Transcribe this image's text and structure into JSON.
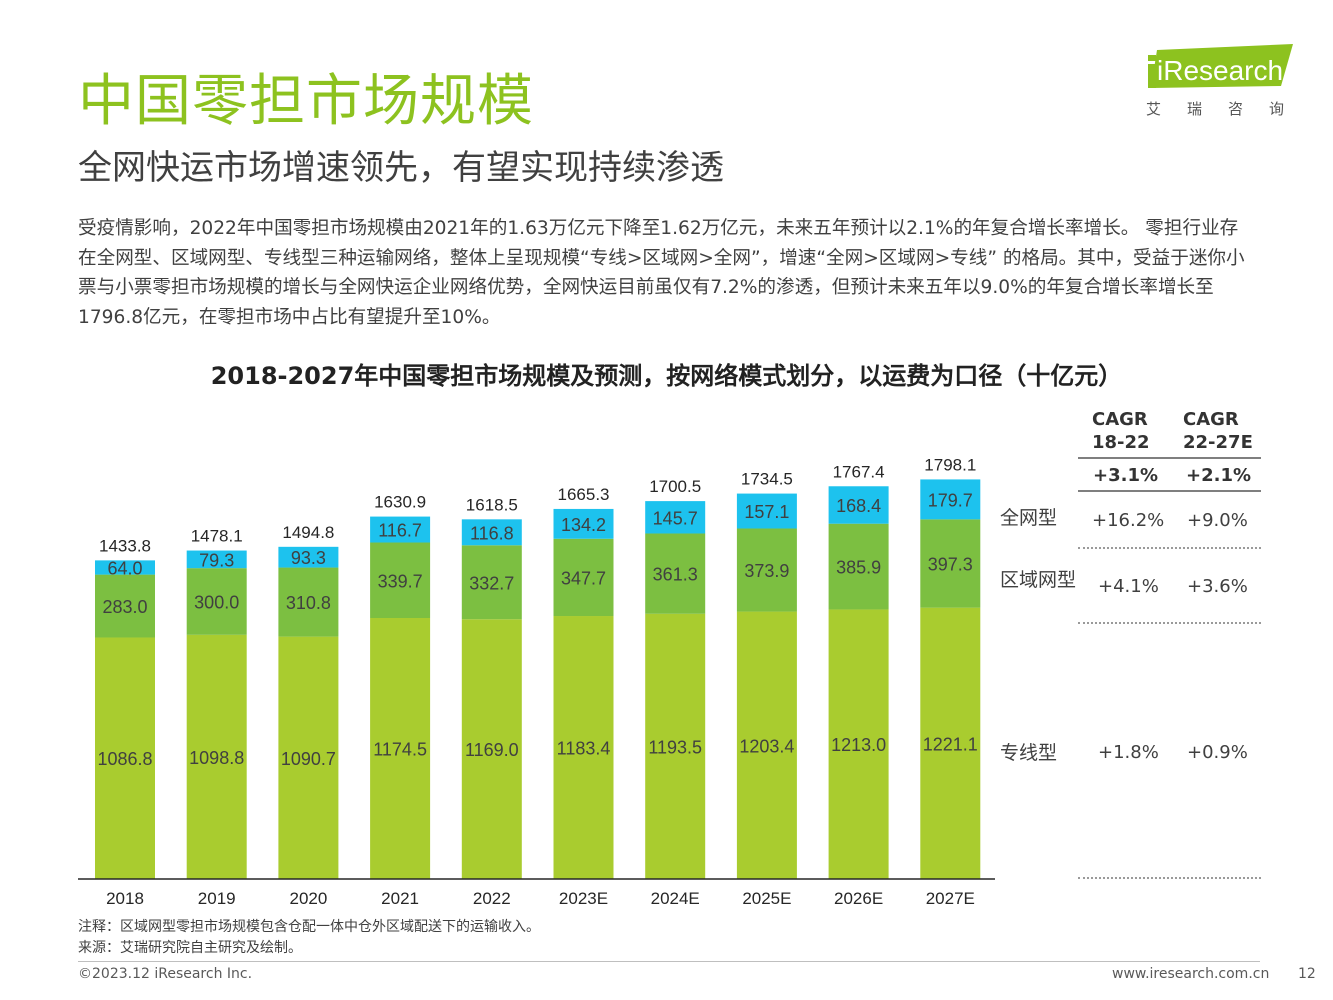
{
  "header": {
    "title": "中国零担市场规模",
    "subtitle": "全网快运市场增速领先，有望实现持续渗透",
    "logo_text": "iResearch",
    "logo_cn": "艾瑞咨询"
  },
  "body_text": "受疫情影响，2022年中国零担市场规模由2021年的1.63万亿元下降至1.62万亿元，未来五年预计以2.1%的年复合增长率增长。 零担行业存在全网型、区域网型、专线型三种运输网络，整体上呈现规模“专线>区域网>全网”，增速“全网>区域网>专线” 的格局。其中，受益于迷你小票与小票零担市场规模的增长与全网快运企业网络优势，全网快运目前虽仅有7.2%的渗透，但预计未来五年以9.0%的年复合增长率增长至1796.8亿元，在零担市场中占比有望提升至10%。",
  "chart_data": {
    "type": "bar",
    "stacked": true,
    "title": "2018-2027年中国零担市场规模及预测，按网络模式划分，以运费为口径（十亿元）",
    "categories": [
      "2018",
      "2019",
      "2020",
      "2021",
      "2022",
      "2023E",
      "2024E",
      "2025E",
      "2026E",
      "2027E"
    ],
    "series": [
      {
        "name": "专线型",
        "color": "#A9CC2F",
        "values": [
          1086.8,
          1098.8,
          1090.7,
          1174.5,
          1169.0,
          1183.4,
          1193.5,
          1203.4,
          1213.0,
          1221.1
        ],
        "labels": [
          "1086.8",
          "1098.8",
          "1090.7",
          "1174.5",
          "1169.0",
          "1183.4",
          "1193.5",
          "1203.4",
          "1213.0",
          "1221.1"
        ]
      },
      {
        "name": "区域网型",
        "color": "#7CBF41",
        "values": [
          283.0,
          300.0,
          310.8,
          339.7,
          332.7,
          347.7,
          361.3,
          373.9,
          385.9,
          397.3
        ],
        "labels": [
          "283.0",
          "300.0",
          "310.8",
          "339.7",
          "332.7",
          "347.7",
          "361.3",
          "373.9",
          "385.9",
          "397.3"
        ]
      },
      {
        "name": "全网型",
        "color": "#1DC2EE",
        "values": [
          64.0,
          79.3,
          93.3,
          116.7,
          116.8,
          134.2,
          145.7,
          157.1,
          168.4,
          179.7
        ],
        "labels": [
          "64.0",
          "79.3",
          "93.3",
          "116.7",
          "116.8",
          "134.2",
          "145.7",
          "157.1",
          "168.4",
          "179.7"
        ]
      }
    ],
    "totals": [
      1433.8,
      1478.1,
      1494.8,
      1630.9,
      1618.5,
      1665.3,
      1700.5,
      1734.5,
      1767.4,
      1798.1
    ],
    "total_labels": [
      "1433.8",
      "1478.1",
      "1494.8",
      "1630.9",
      "1618.5",
      "1665.3",
      "1700.5",
      "1734.5",
      "1767.4",
      "1798.1"
    ],
    "ylim": [
      0,
      1900
    ],
    "grid": false,
    "legend": "right"
  },
  "cagr": {
    "head1": "CAGR\n18-22",
    "head2": "CAGR\n22-27E",
    "total": [
      "+3.1%",
      "+2.1%"
    ],
    "rows": [
      {
        "name": "全网型",
        "v1": "+16.2%",
        "v2": "+9.0%"
      },
      {
        "name": "区域网型",
        "v1": "+4.1%",
        "v2": "+3.6%"
      },
      {
        "name": "专线型",
        "v1": "+1.8%",
        "v2": "+0.9%"
      }
    ]
  },
  "notes": {
    "note": "注释：区域网型零担市场规模包含仓配一体中仓外区域配送下的运输收入。",
    "source": "来源：艾瑞研究院自主研究及绘制。"
  },
  "footer": {
    "copyright": "©2023.12 iResearch Inc.",
    "url": "www.iresearch.com.cn",
    "page": "12"
  }
}
